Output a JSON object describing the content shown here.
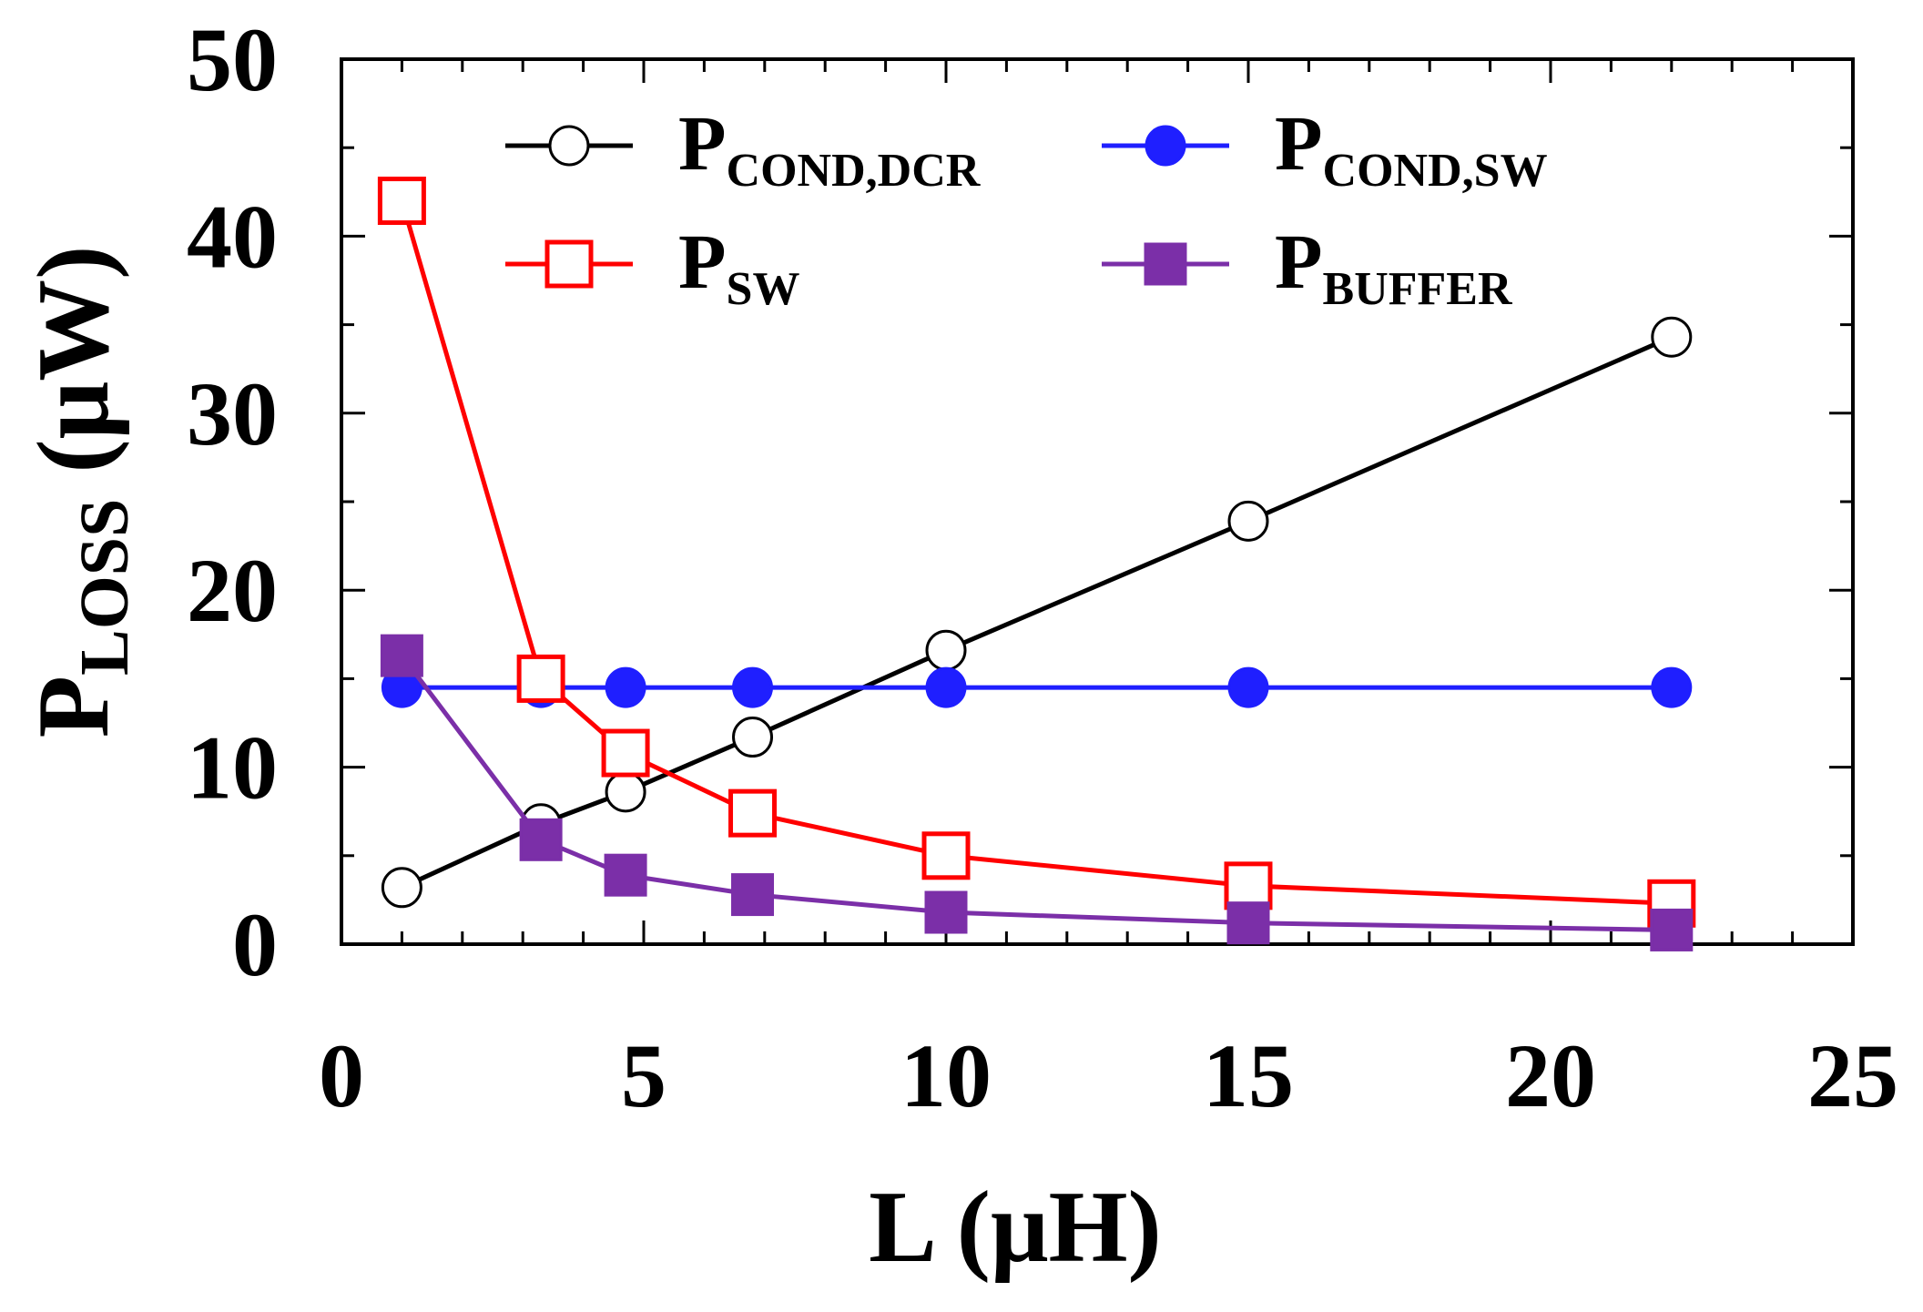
{
  "chart_data": {
    "type": "line",
    "title": "",
    "xlabel": "L (μH)",
    "ylabel": {
      "main": "P",
      "sub": "LOSS",
      "unit": " (μW)"
    },
    "xlim": [
      0,
      25
    ],
    "ylim": [
      0,
      50
    ],
    "xticks": [
      0,
      5,
      10,
      15,
      20,
      25
    ],
    "yticks": [
      0,
      10,
      20,
      30,
      40,
      50
    ],
    "x_minor_step": 1,
    "y_minor_step": 5,
    "grid": false,
    "legend_position": "top",
    "x": [
      1.0,
      3.3,
      4.7,
      6.8,
      10,
      15,
      22
    ],
    "series": [
      {
        "name": "P",
        "sub": "COND,DCR",
        "color": "#000000",
        "marker": "circle-open",
        "values": [
          3.2,
          6.8,
          8.6,
          11.7,
          16.6,
          23.9,
          34.3
        ]
      },
      {
        "name": "P",
        "sub": "COND,SW",
        "color": "#1f1fff",
        "marker": "circle-filled",
        "values": [
          14.5,
          14.5,
          14.5,
          14.5,
          14.5,
          14.5,
          14.5
        ]
      },
      {
        "name": "P",
        "sub": "SW",
        "color": "#ff0000",
        "marker": "square-open",
        "values": [
          42.0,
          15.0,
          10.8,
          7.4,
          5.0,
          3.3,
          2.3
        ]
      },
      {
        "name": "P",
        "sub": "BUFFER",
        "color": "#7b2fa8",
        "marker": "square-filled",
        "values": [
          16.3,
          5.9,
          3.9,
          2.8,
          1.8,
          1.2,
          0.8
        ]
      }
    ]
  }
}
